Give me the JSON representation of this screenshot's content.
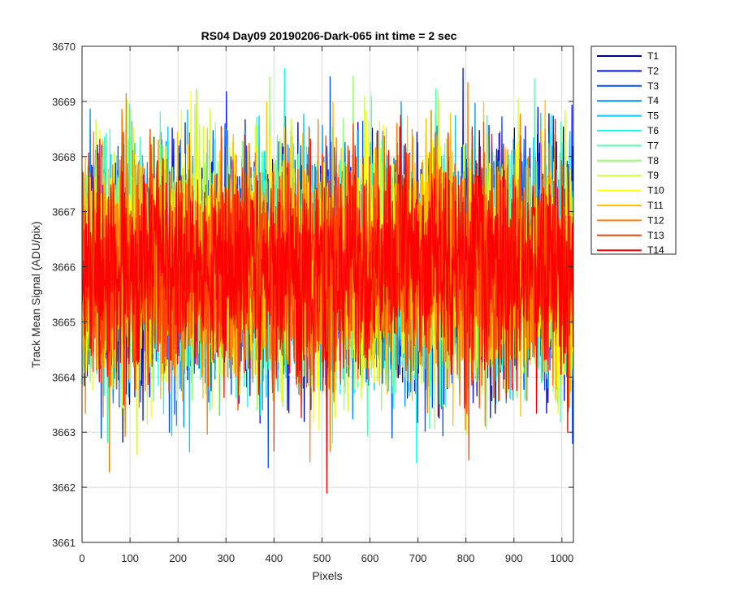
{
  "chart_data": {
    "type": "line",
    "title": "RS04 Day09 20190206-Dark-065 int time = 2 sec",
    "xlabel": "Pixels",
    "ylabel": "Track Mean Signal (ADU/pix)",
    "xlim": [
      0,
      1024
    ],
    "ylim": [
      3661,
      3670
    ],
    "xticks": [
      "0",
      "100",
      "200",
      "300",
      "400",
      "500",
      "600",
      "700",
      "800",
      "900",
      "1000"
    ],
    "yticks": [
      "3661",
      "3662",
      "3663",
      "3664",
      "3665",
      "3666",
      "3667",
      "3668",
      "3669",
      "3670"
    ],
    "grid": true,
    "legend_position": "outside-top-right",
    "noise_mean": 3666,
    "noise_spread": 1.2,
    "series": [
      {
        "name": "T1",
        "color": "#00008f"
      },
      {
        "name": "T2",
        "color": "#0010ff"
      },
      {
        "name": "T3",
        "color": "#0050ff"
      },
      {
        "name": "T4",
        "color": "#0090ff"
      },
      {
        "name": "T5",
        "color": "#00c8ff"
      },
      {
        "name": "T6",
        "color": "#10ffef"
      },
      {
        "name": "T7",
        "color": "#50ffaf"
      },
      {
        "name": "T8",
        "color": "#90ff6f"
      },
      {
        "name": "T9",
        "color": "#cfff30"
      },
      {
        "name": "T10",
        "color": "#ffff00"
      },
      {
        "name": "T11",
        "color": "#ffc000"
      },
      {
        "name": "T12",
        "color": "#ff8000"
      },
      {
        "name": "T13",
        "color": "#ff4000"
      },
      {
        "name": "T14",
        "color": "#ff0000"
      }
    ]
  }
}
